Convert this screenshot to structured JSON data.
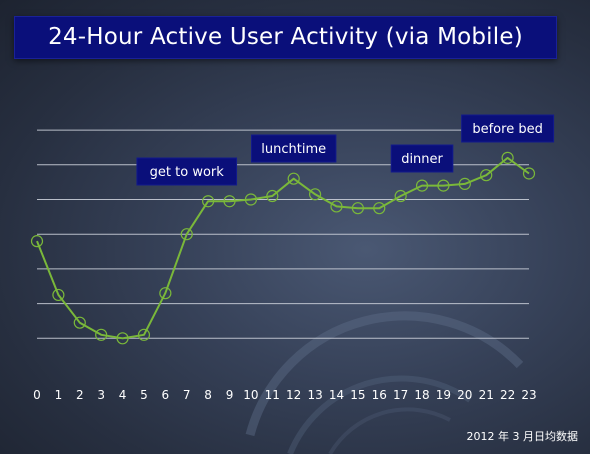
{
  "chart_data": {
    "type": "line",
    "title": "24-Hour Active User Activity (via Mobile)",
    "x": [
      0,
      1,
      2,
      3,
      4,
      5,
      6,
      7,
      8,
      9,
      10,
      11,
      12,
      13,
      14,
      15,
      16,
      17,
      18,
      19,
      20,
      21,
      22,
      23
    ],
    "series": [
      {
        "values": [
          3.8,
          2.25,
          1.45,
          1.1,
          1.0,
          1.1,
          2.3,
          4.0,
          4.95,
          4.95,
          5.0,
          5.1,
          5.6,
          5.15,
          4.8,
          4.75,
          4.75,
          5.1,
          5.4,
          5.4,
          5.45,
          5.7,
          6.2,
          5.75
        ]
      }
    ],
    "xlabel": "",
    "ylabel": "",
    "ylim": [
      0,
      7
    ],
    "grid": true,
    "line_color": "#7ab83a",
    "annotations": [
      {
        "text": "get to work",
        "x": 7
      },
      {
        "text": "lunchtime",
        "x": 12
      },
      {
        "text": "dinner",
        "x": 18
      },
      {
        "text": "before bed",
        "x": 22
      }
    ]
  },
  "footnote": "2012 年 3 月日均数据"
}
